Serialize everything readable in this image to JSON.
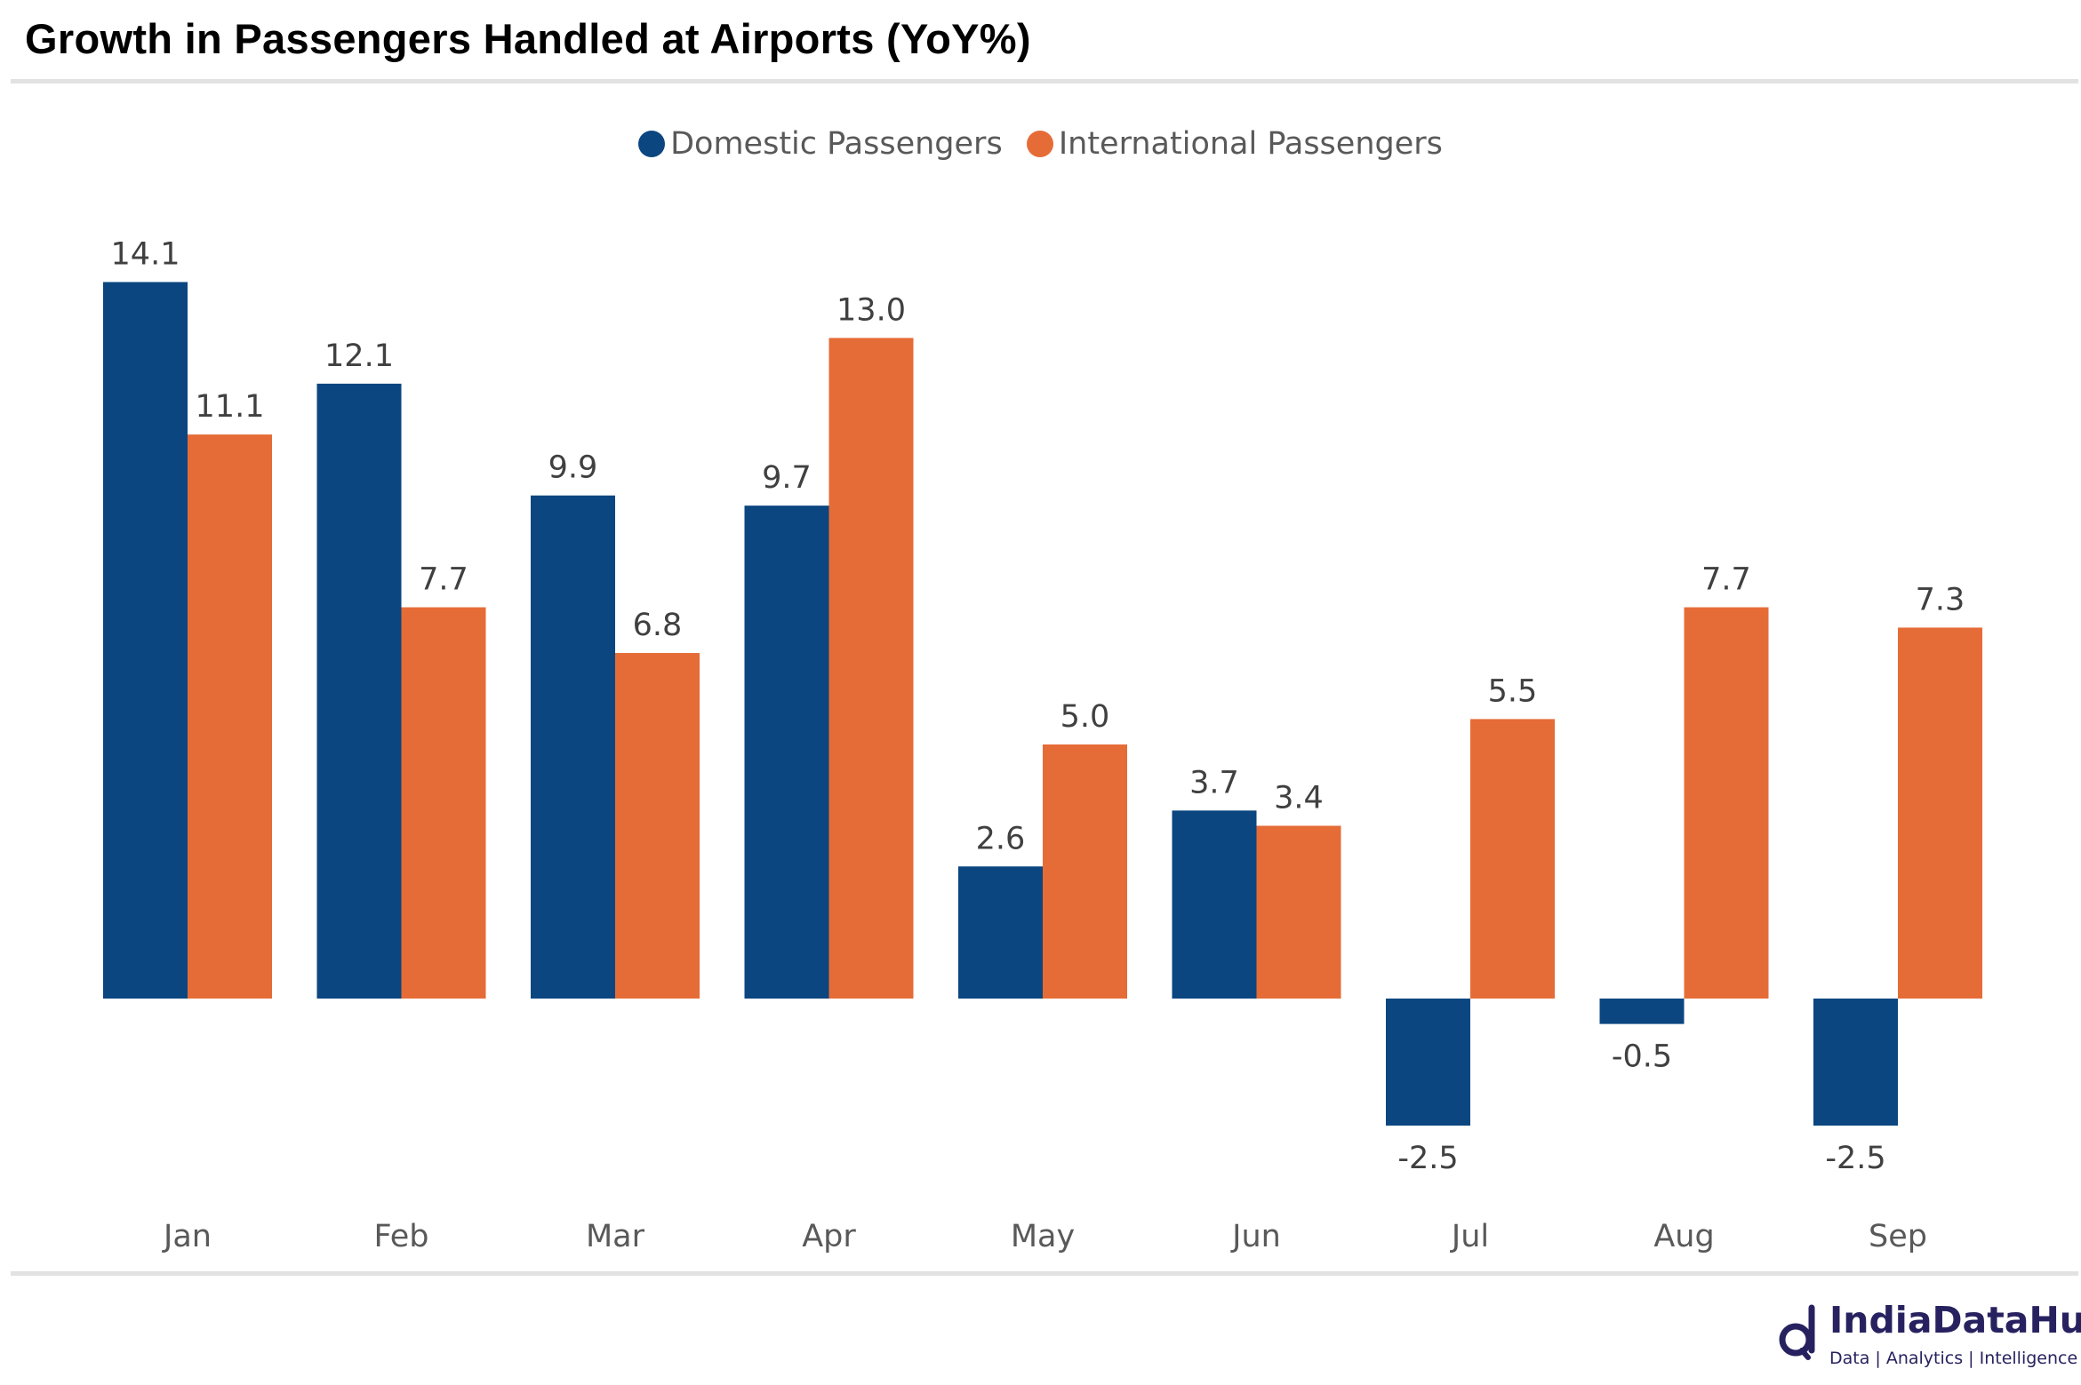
{
  "title": "Growth in Passengers Handled at Airports (YoY%)",
  "logo": {
    "brand": "IndiaDataHub",
    "tagline": "Data | Analytics | Intelligence"
  },
  "chart_data": {
    "type": "bar",
    "title": "Growth in Passengers Handled at Airports (YoY%)",
    "xlabel": "",
    "ylabel": "",
    "categories": [
      "Jan",
      "Feb",
      "Mar",
      "Apr",
      "May",
      "Jun",
      "Jul",
      "Aug",
      "Sep"
    ],
    "series": [
      {
        "name": "Domestic Passengers",
        "color": "#0b4680",
        "values": [
          14.1,
          12.1,
          9.9,
          9.7,
          2.6,
          3.7,
          -2.5,
          -0.5,
          -2.5
        ]
      },
      {
        "name": "International Passengers",
        "color": "#e66c37",
        "values": [
          11.1,
          7.7,
          6.8,
          13.0,
          5.0,
          3.4,
          5.5,
          7.7,
          7.3
        ]
      }
    ],
    "legend": "top-center",
    "grid": false,
    "data_labels": true,
    "ylim": [
      -3.5,
      15
    ]
  }
}
